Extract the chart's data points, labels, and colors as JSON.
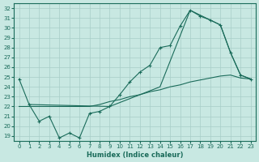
{
  "xlabel": "Humidex (Indice chaleur)",
  "xlim": [
    -0.5,
    23.5
  ],
  "ylim": [
    18.5,
    32.5
  ],
  "yticks": [
    19,
    20,
    21,
    22,
    23,
    24,
    25,
    26,
    27,
    28,
    29,
    30,
    31,
    32
  ],
  "xticks": [
    0,
    1,
    2,
    3,
    4,
    5,
    6,
    7,
    8,
    9,
    10,
    11,
    12,
    13,
    14,
    15,
    16,
    17,
    18,
    19,
    20,
    21,
    22,
    23
  ],
  "background_color": "#c8e8e2",
  "grid_color": "#a8cec8",
  "line_color": "#1a6b5a",
  "line1_x": [
    0,
    1,
    2,
    3,
    4,
    5,
    6,
    7,
    8,
    9,
    10,
    11,
    12,
    13,
    14,
    15,
    16,
    17,
    18,
    19,
    20,
    21,
    22,
    23
  ],
  "line1_y": [
    24.8,
    22.2,
    20.5,
    21.0,
    18.8,
    19.3,
    18.8,
    21.3,
    21.5,
    22.0,
    23.2,
    24.5,
    25.5,
    26.2,
    28.0,
    28.2,
    30.2,
    31.8,
    31.2,
    30.8,
    30.3,
    27.5,
    25.2,
    24.8
  ],
  "line2_x": [
    1,
    9,
    14,
    17,
    19,
    20,
    21,
    22,
    23
  ],
  "line2_y": [
    22.2,
    22.0,
    24.0,
    31.8,
    30.8,
    30.3,
    27.5,
    25.2,
    24.8
  ],
  "line3_x": [
    0,
    1,
    2,
    3,
    4,
    5,
    6,
    7,
    8,
    9,
    10,
    11,
    12,
    13,
    14,
    15,
    16,
    17,
    18,
    19,
    20,
    21,
    22,
    23
  ],
  "line3_y": [
    22.0,
    22.0,
    22.0,
    22.0,
    22.0,
    22.0,
    22.0,
    22.0,
    22.2,
    22.5,
    22.7,
    23.0,
    23.2,
    23.5,
    23.7,
    24.0,
    24.2,
    24.5,
    24.7,
    24.9,
    25.1,
    25.2,
    24.9,
    24.8
  ]
}
